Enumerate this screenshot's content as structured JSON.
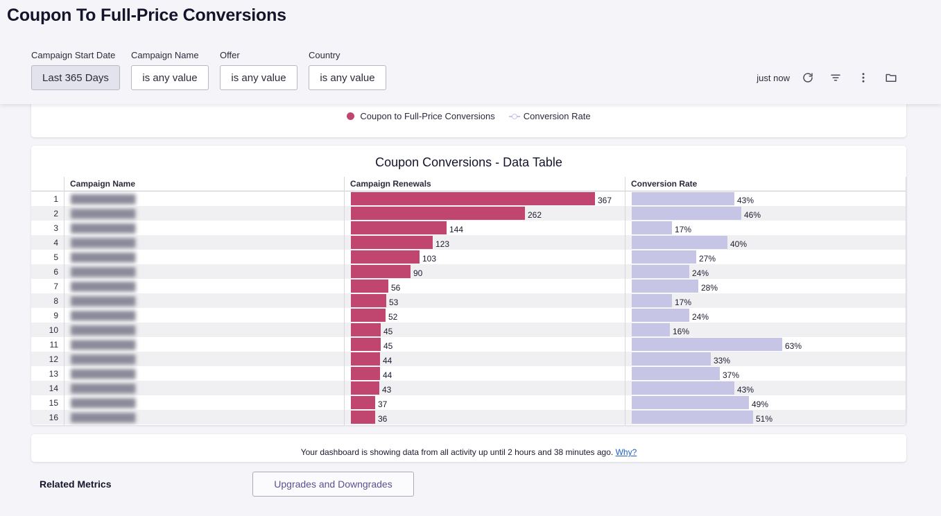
{
  "page": {
    "title": "Coupon To Full-Price Conversions"
  },
  "filters": [
    {
      "label": "Campaign Start Date",
      "value": "Last 365 Days"
    },
    {
      "label": "Campaign Name",
      "value": "is any value"
    },
    {
      "label": "Offer",
      "value": "is any value"
    },
    {
      "label": "Country",
      "value": "is any value"
    }
  ],
  "toolbar": {
    "updated": "just now",
    "icons": [
      "refresh-icon",
      "filter-icon",
      "more-vertical-icon",
      "folder-icon"
    ]
  },
  "legend": {
    "series1": "Coupon to Full-Price Conversions",
    "series2": "Conversion Rate",
    "colors": {
      "conversions": "#c0466f",
      "rate": "#c6c5e6"
    }
  },
  "table": {
    "title": "Coupon Conversions - Data Table",
    "headers": {
      "campaign_name": "Campaign Name",
      "renewals": "Campaign Renewals",
      "rate": "Conversion Rate"
    },
    "rows": [
      {
        "n": "1",
        "renewals": "367",
        "rate": "43%"
      },
      {
        "n": "2",
        "renewals": "262",
        "rate": "46%"
      },
      {
        "n": "3",
        "renewals": "144",
        "rate": "17%"
      },
      {
        "n": "4",
        "renewals": "123",
        "rate": "40%"
      },
      {
        "n": "5",
        "renewals": "103",
        "rate": "27%"
      },
      {
        "n": "6",
        "renewals": "90",
        "rate": "24%"
      },
      {
        "n": "7",
        "renewals": "56",
        "rate": "28%"
      },
      {
        "n": "8",
        "renewals": "53",
        "rate": "17%"
      },
      {
        "n": "9",
        "renewals": "52",
        "rate": "24%"
      },
      {
        "n": "10",
        "renewals": "45",
        "rate": "16%"
      },
      {
        "n": "11",
        "renewals": "45",
        "rate": "63%"
      },
      {
        "n": "12",
        "renewals": "44",
        "rate": "33%"
      },
      {
        "n": "13",
        "renewals": "44",
        "rate": "37%"
      },
      {
        "n": "14",
        "renewals": "43",
        "rate": "43%"
      },
      {
        "n": "15",
        "renewals": "37",
        "rate": "49%"
      },
      {
        "n": "16",
        "renewals": "36",
        "rate": "51%"
      }
    ]
  },
  "notice": {
    "text": "Your dashboard is showing data from all activity up until 2 hours and 38 minutes ago.",
    "link": "Why?"
  },
  "related": {
    "label": "Related Metrics",
    "button": "Upgrades and Downgrades"
  }
}
